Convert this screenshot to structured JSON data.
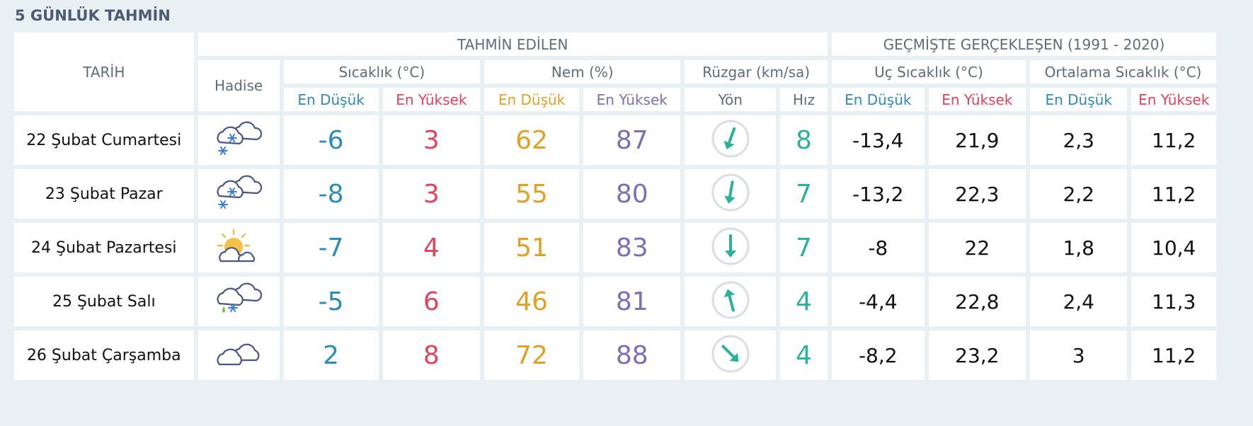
{
  "page_title": "5 GÜNLÜK TAHMİN",
  "headers": {
    "tarih": "TARİH",
    "tahmin": "TAHMİN EDİLEN",
    "gecmis": "GEÇMİŞTE GERÇEKLEŞEN (1991 - 2020)",
    "hadise": "Hadise",
    "sicaklik": "Sıcaklık (°C)",
    "nem": "Nem (%)",
    "ruzgar": "Rüzgar (km/sa)",
    "uc_sicaklik": "Uç Sıcaklık (°C)",
    "ort_sicaklik": "Ortalama Sıcaklık (°C)",
    "en_dusuk": "En Düşük",
    "en_yuksek": "En Yüksek",
    "yon": "Yön",
    "hiz": "Hız"
  },
  "colors": {
    "min_temp": "#2e8ab7",
    "max_temp": "#e0435c",
    "min_humidity": "#e0a128",
    "max_humidity": "#7b6fb6",
    "wind": "#2bb39a"
  },
  "rows": [
    {
      "date": "22 Şubat Cumartesi",
      "icon": "snow-cloud-icon",
      "temp_min": "-6",
      "temp_max": "3",
      "hum_min": "62",
      "hum_max": "87",
      "wind_dir_deg": 200,
      "wind_speed": "8",
      "ext_min": "-13,4",
      "ext_max": "21,9",
      "avg_min": "2,3",
      "avg_max": "11,2"
    },
    {
      "date": "23 Şubat Pazar",
      "icon": "snow-cloud-icon",
      "temp_min": "-8",
      "temp_max": "3",
      "hum_min": "55",
      "hum_max": "80",
      "wind_dir_deg": 190,
      "wind_speed": "7",
      "ext_min": "-13,2",
      "ext_max": "22,3",
      "avg_min": "2,2",
      "avg_max": "11,2"
    },
    {
      "date": "24 Şubat Pazartesi",
      "icon": "sun-cloud-icon",
      "temp_min": "-7",
      "temp_max": "4",
      "hum_min": "51",
      "hum_max": "83",
      "wind_dir_deg": 180,
      "wind_speed": "7",
      "ext_min": "-8",
      "ext_max": "22",
      "avg_min": "1,8",
      "avg_max": "10,4"
    },
    {
      "date": "25 Şubat Salı",
      "icon": "sleet-cloud-icon",
      "temp_min": "-5",
      "temp_max": "6",
      "hum_min": "46",
      "hum_max": "81",
      "wind_dir_deg": 345,
      "wind_speed": "4",
      "ext_min": "-4,4",
      "ext_max": "22,8",
      "avg_min": "2,4",
      "avg_max": "11,3"
    },
    {
      "date": "26 Şubat Çarşamba",
      "icon": "cloud-icon",
      "temp_min": "2",
      "temp_max": "8",
      "hum_min": "72",
      "hum_max": "88",
      "wind_dir_deg": 135,
      "wind_speed": "4",
      "ext_min": "-8,2",
      "ext_max": "23,2",
      "avg_min": "3",
      "avg_max": "11,2"
    }
  ]
}
